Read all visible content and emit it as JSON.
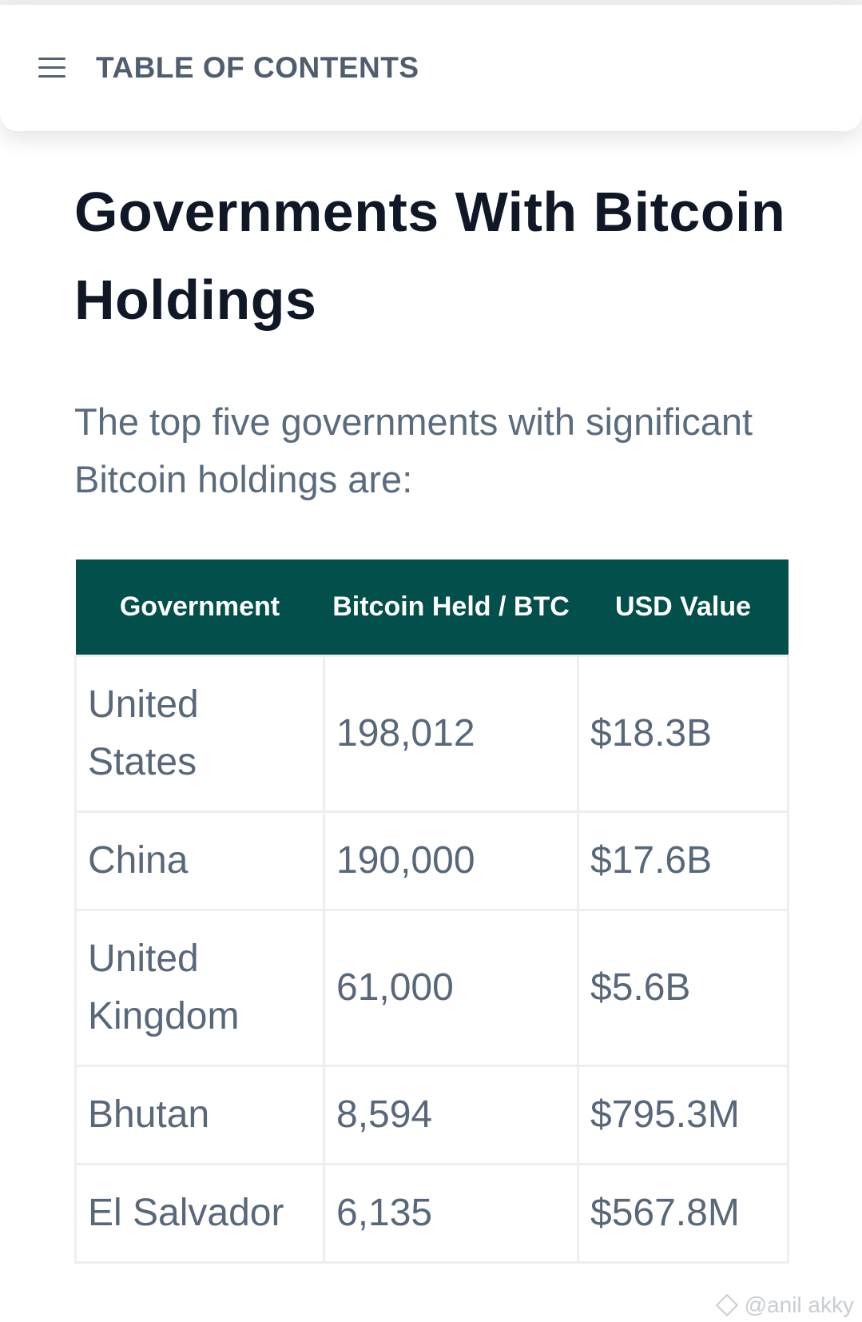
{
  "toc": {
    "label": "TABLE OF CONTENTS",
    "icon": "hamburger-menu-icon"
  },
  "page": {
    "title": "Governments With Bitcoin Holdings",
    "intro": "The top five governments with significant Bitcoin holdings are:"
  },
  "table": {
    "header_color": "#034f4c",
    "headers": [
      "Government",
      "Bitcoin Held / BTC",
      "USD Value"
    ],
    "rows": [
      {
        "government": "United States",
        "btc": "198,012",
        "usd": "$18.3B"
      },
      {
        "government": "China",
        "btc": "190,000",
        "usd": "$17.6B"
      },
      {
        "government": "United Kingdom",
        "btc": "61,000",
        "usd": "$5.6B"
      },
      {
        "government": "Bhutan",
        "btc": "8,594",
        "usd": "$795.3M"
      },
      {
        "government": "El Salvador",
        "btc": "6,135",
        "usd": "$567.8M"
      }
    ]
  },
  "watermark": {
    "text": "@anil akky",
    "icon": "diamond-logo-icon"
  }
}
